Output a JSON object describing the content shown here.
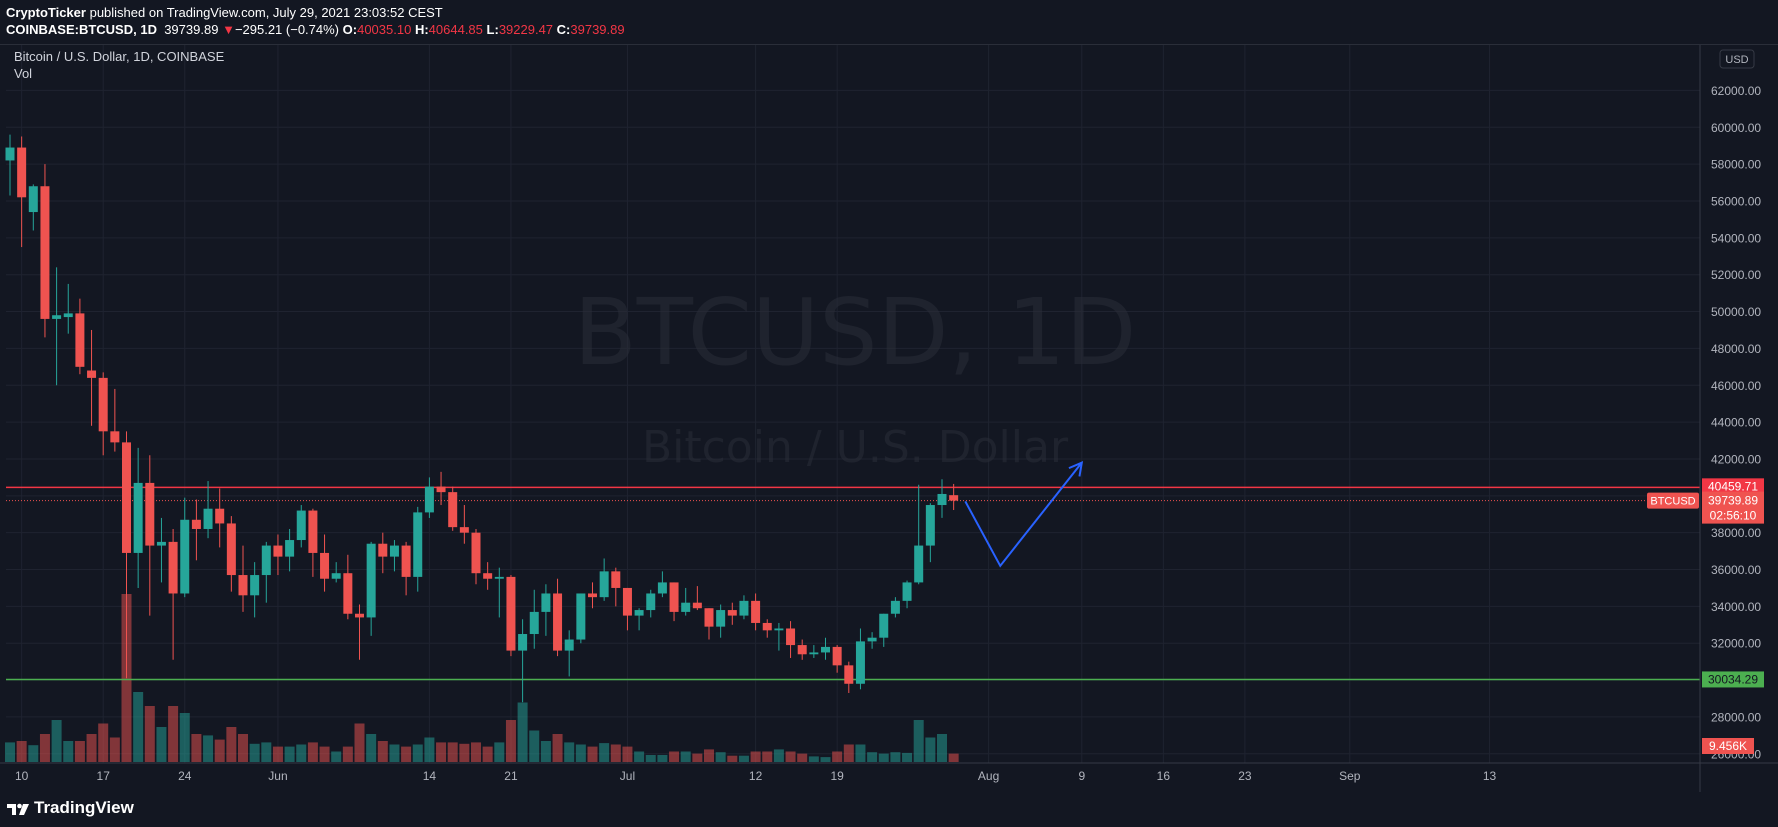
{
  "header": {
    "publisher": "CryptoTicker",
    "published_text": "published on TradingView.com, July 29, 2021 23:03:52 CEST",
    "symbol_line": "COINBASE:BTCUSD, 1D",
    "last": "39739.89",
    "change": "−295.21 (−0.74%)",
    "o_label": "O:",
    "open": "40035.10",
    "h_label": "H:",
    "high": "40644.85",
    "l_label": "L:",
    "low": "39229.47",
    "c_label": "C:",
    "close": "39739.89"
  },
  "chart_header": {
    "title": "Bitcoin / U.S. Dollar, 1D, COINBASE",
    "vol_label": "Vol"
  },
  "watermark": {
    "line1": "BTCUSD, 1D",
    "line2": "Bitcoin / U.S. Dollar"
  },
  "footer": {
    "brand": "TradingView"
  },
  "colors": {
    "up": "#26a69a",
    "down": "#ef5350",
    "bg": "#131722",
    "resistance": "#f23645",
    "support": "#4caf50",
    "projection": "#2962ff"
  },
  "chart_data": {
    "type": "candlestick",
    "currency_label": "USD",
    "y_range": [
      25500,
      63000
    ],
    "y_ticks": [
      "26000.00",
      "28000.00",
      "30000.00",
      "32000.00",
      "34000.00",
      "36000.00",
      "38000.00",
      "40000.00",
      "42000.00",
      "44000.00",
      "46000.00",
      "48000.00",
      "50000.00",
      "52000.00",
      "54000.00",
      "56000.00",
      "58000.00",
      "60000.00",
      "62000.00"
    ],
    "x_axis": [
      {
        "label": "10",
        "date": "2021-05-10"
      },
      {
        "label": "17",
        "date": "2021-05-17"
      },
      {
        "label": "24",
        "date": "2021-05-24"
      },
      {
        "label": "Jun",
        "date": "2021-06-01"
      },
      {
        "label": "14",
        "date": "2021-06-14"
      },
      {
        "label": "21",
        "date": "2021-06-21"
      },
      {
        "label": "Jul",
        "date": "2021-07-01"
      },
      {
        "label": "12",
        "date": "2021-07-12"
      },
      {
        "label": "19",
        "date": "2021-07-19"
      },
      {
        "label": "Aug",
        "date": "2021-08-01"
      },
      {
        "label": "9",
        "date": "2021-08-09"
      },
      {
        "label": "16",
        "date": "2021-08-16"
      },
      {
        "label": "23",
        "date": "2021-08-23"
      },
      {
        "label": "Sep",
        "date": "2021-09-01"
      },
      {
        "label": "13",
        "date": "2021-09-13"
      }
    ],
    "candles": [
      {
        "d": "2021-05-09",
        "o": 58200,
        "h": 59600,
        "l": 56300,
        "c": 58900,
        "v": 2.8
      },
      {
        "d": "2021-05-10",
        "o": 58900,
        "h": 59500,
        "l": 53500,
        "c": 56200,
        "v": 3.0
      },
      {
        "d": "2021-05-11",
        "o": 55400,
        "h": 56900,
        "l": 54400,
        "c": 56800,
        "v": 2.4
      },
      {
        "d": "2021-05-12",
        "o": 56800,
        "h": 58000,
        "l": 48600,
        "c": 49600,
        "v": 4.0
      },
      {
        "d": "2021-05-13",
        "o": 49600,
        "h": 52400,
        "l": 46000,
        "c": 49800,
        "v": 6.0
      },
      {
        "d": "2021-05-14",
        "o": 49700,
        "h": 51500,
        "l": 48800,
        "c": 49900,
        "v": 3.0
      },
      {
        "d": "2021-05-15",
        "o": 49900,
        "h": 50700,
        "l": 46600,
        "c": 47000,
        "v": 3.0
      },
      {
        "d": "2021-05-16",
        "o": 46800,
        "h": 49000,
        "l": 43800,
        "c": 46400,
        "v": 4.0
      },
      {
        "d": "2021-05-17",
        "o": 46400,
        "h": 46700,
        "l": 42200,
        "c": 43500,
        "v": 5.5
      },
      {
        "d": "2021-05-18",
        "o": 43500,
        "h": 45800,
        "l": 42400,
        "c": 42900,
        "v": 3.5
      },
      {
        "d": "2021-05-19",
        "o": 42900,
        "h": 43500,
        "l": 30100,
        "c": 36900,
        "v": 24.0
      },
      {
        "d": "2021-05-20",
        "o": 36900,
        "h": 42600,
        "l": 35000,
        "c": 40700,
        "v": 10.0
      },
      {
        "d": "2021-05-21",
        "o": 40700,
        "h": 42200,
        "l": 33500,
        "c": 37300,
        "v": 8.0
      },
      {
        "d": "2021-05-22",
        "o": 37300,
        "h": 38800,
        "l": 35300,
        "c": 37500,
        "v": 5.0
      },
      {
        "d": "2021-05-23",
        "o": 37500,
        "h": 38200,
        "l": 31100,
        "c": 34700,
        "v": 8.0
      },
      {
        "d": "2021-05-24",
        "o": 34700,
        "h": 39900,
        "l": 34500,
        "c": 38700,
        "v": 7.0
      },
      {
        "d": "2021-05-25",
        "o": 38700,
        "h": 39800,
        "l": 36500,
        "c": 38200,
        "v": 4.0
      },
      {
        "d": "2021-05-26",
        "o": 38200,
        "h": 40800,
        "l": 37700,
        "c": 39300,
        "v": 3.8
      },
      {
        "d": "2021-05-27",
        "o": 39300,
        "h": 40400,
        "l": 37200,
        "c": 38500,
        "v": 3.2
      },
      {
        "d": "2021-05-28",
        "o": 38500,
        "h": 38900,
        "l": 34800,
        "c": 35700,
        "v": 5.0
      },
      {
        "d": "2021-05-29",
        "o": 35700,
        "h": 37300,
        "l": 33700,
        "c": 34600,
        "v": 4.0
      },
      {
        "d": "2021-05-30",
        "o": 34600,
        "h": 36400,
        "l": 33400,
        "c": 35700,
        "v": 2.6
      },
      {
        "d": "2021-05-31",
        "o": 35700,
        "h": 37500,
        "l": 34200,
        "c": 37300,
        "v": 2.8
      },
      {
        "d": "2021-06-01",
        "o": 37300,
        "h": 37900,
        "l": 35700,
        "c": 36700,
        "v": 2.2
      },
      {
        "d": "2021-06-02",
        "o": 36700,
        "h": 38200,
        "l": 35900,
        "c": 37600,
        "v": 2.2
      },
      {
        "d": "2021-06-03",
        "o": 37600,
        "h": 39500,
        "l": 37200,
        "c": 39200,
        "v": 2.5
      },
      {
        "d": "2021-06-04",
        "o": 39200,
        "h": 39300,
        "l": 35600,
        "c": 36900,
        "v": 2.8
      },
      {
        "d": "2021-06-05",
        "o": 36900,
        "h": 37900,
        "l": 34800,
        "c": 35500,
        "v": 2.2
      },
      {
        "d": "2021-06-06",
        "o": 35500,
        "h": 36400,
        "l": 35300,
        "c": 35800,
        "v": 1.5
      },
      {
        "d": "2021-06-07",
        "o": 35800,
        "h": 36800,
        "l": 33300,
        "c": 33600,
        "v": 2.2
      },
      {
        "d": "2021-06-08",
        "o": 33600,
        "h": 34100,
        "l": 31100,
        "c": 33400,
        "v": 5.5
      },
      {
        "d": "2021-06-09",
        "o": 33400,
        "h": 37500,
        "l": 32400,
        "c": 37400,
        "v": 4.0
      },
      {
        "d": "2021-06-10",
        "o": 37400,
        "h": 38000,
        "l": 35800,
        "c": 36700,
        "v": 3.0
      },
      {
        "d": "2021-06-11",
        "o": 36700,
        "h": 37600,
        "l": 35900,
        "c": 37300,
        "v": 2.5
      },
      {
        "d": "2021-06-12",
        "o": 37300,
        "h": 37500,
        "l": 34600,
        "c": 35600,
        "v": 2.2
      },
      {
        "d": "2021-06-13",
        "o": 35600,
        "h": 39400,
        "l": 34800,
        "c": 39100,
        "v": 2.5
      },
      {
        "d": "2021-06-14",
        "o": 39100,
        "h": 41000,
        "l": 38800,
        "c": 40500,
        "v": 3.5
      },
      {
        "d": "2021-06-15",
        "o": 40500,
        "h": 41300,
        "l": 39500,
        "c": 40200,
        "v": 2.8
      },
      {
        "d": "2021-06-16",
        "o": 40200,
        "h": 40500,
        "l": 38100,
        "c": 38300,
        "v": 2.8
      },
      {
        "d": "2021-06-17",
        "o": 38300,
        "h": 39500,
        "l": 37400,
        "c": 38000,
        "v": 2.6
      },
      {
        "d": "2021-06-18",
        "o": 38000,
        "h": 38200,
        "l": 35200,
        "c": 35800,
        "v": 2.8
      },
      {
        "d": "2021-06-19",
        "o": 35800,
        "h": 36400,
        "l": 34900,
        "c": 35500,
        "v": 2.2
      },
      {
        "d": "2021-06-20",
        "o": 35500,
        "h": 36100,
        "l": 33400,
        "c": 35600,
        "v": 2.8
      },
      {
        "d": "2021-06-21",
        "o": 35600,
        "h": 35700,
        "l": 31300,
        "c": 31600,
        "v": 6.0
      },
      {
        "d": "2021-06-22",
        "o": 31600,
        "h": 33300,
        "l": 28800,
        "c": 32500,
        "v": 8.5
      },
      {
        "d": "2021-06-23",
        "o": 32500,
        "h": 34900,
        "l": 31700,
        "c": 33700,
        "v": 4.5
      },
      {
        "d": "2021-06-24",
        "o": 33700,
        "h": 35200,
        "l": 32400,
        "c": 34700,
        "v": 3.0
      },
      {
        "d": "2021-06-25",
        "o": 34700,
        "h": 35500,
        "l": 31300,
        "c": 31600,
        "v": 4.0
      },
      {
        "d": "2021-06-26",
        "o": 31600,
        "h": 32700,
        "l": 30200,
        "c": 32200,
        "v": 2.8
      },
      {
        "d": "2021-06-27",
        "o": 32200,
        "h": 34700,
        "l": 32000,
        "c": 34700,
        "v": 2.5
      },
      {
        "d": "2021-06-28",
        "o": 34700,
        "h": 35300,
        "l": 33900,
        "c": 34500,
        "v": 2.2
      },
      {
        "d": "2021-06-29",
        "o": 34500,
        "h": 36600,
        "l": 34300,
        "c": 35900,
        "v": 2.7
      },
      {
        "d": "2021-06-30",
        "o": 35900,
        "h": 36100,
        "l": 34000,
        "c": 35000,
        "v": 2.5
      },
      {
        "d": "2021-07-01",
        "o": 35000,
        "h": 35000,
        "l": 32700,
        "c": 33500,
        "v": 2.2
      },
      {
        "d": "2021-07-02",
        "o": 33500,
        "h": 33900,
        "l": 32700,
        "c": 33800,
        "v": 1.5
      },
      {
        "d": "2021-07-03",
        "o": 33800,
        "h": 34900,
        "l": 33400,
        "c": 34700,
        "v": 1.0
      },
      {
        "d": "2021-07-04",
        "o": 34700,
        "h": 35900,
        "l": 34500,
        "c": 35300,
        "v": 1.0
      },
      {
        "d": "2021-07-05",
        "o": 35300,
        "h": 35300,
        "l": 33200,
        "c": 33700,
        "v": 1.5
      },
      {
        "d": "2021-07-06",
        "o": 33700,
        "h": 35000,
        "l": 33500,
        "c": 34200,
        "v": 1.5
      },
      {
        "d": "2021-07-07",
        "o": 34200,
        "h": 35100,
        "l": 33800,
        "c": 33900,
        "v": 1.2
      },
      {
        "d": "2021-07-08",
        "o": 33900,
        "h": 33900,
        "l": 32200,
        "c": 32900,
        "v": 1.8
      },
      {
        "d": "2021-07-09",
        "o": 32900,
        "h": 34100,
        "l": 32300,
        "c": 33800,
        "v": 1.4
      },
      {
        "d": "2021-07-10",
        "o": 33800,
        "h": 34200,
        "l": 33000,
        "c": 33500,
        "v": 0.9
      },
      {
        "d": "2021-07-11",
        "o": 33500,
        "h": 34600,
        "l": 33300,
        "c": 34300,
        "v": 0.9
      },
      {
        "d": "2021-07-12",
        "o": 34300,
        "h": 34700,
        "l": 32700,
        "c": 33100,
        "v": 1.5
      },
      {
        "d": "2021-07-13",
        "o": 33100,
        "h": 33300,
        "l": 32300,
        "c": 32700,
        "v": 1.5
      },
      {
        "d": "2021-07-14",
        "o": 32700,
        "h": 33100,
        "l": 31600,
        "c": 32800,
        "v": 1.8
      },
      {
        "d": "2021-07-15",
        "o": 32800,
        "h": 33200,
        "l": 31200,
        "c": 31900,
        "v": 1.5
      },
      {
        "d": "2021-07-16",
        "o": 31900,
        "h": 32200,
        "l": 31100,
        "c": 31400,
        "v": 1.2
      },
      {
        "d": "2021-07-17",
        "o": 31400,
        "h": 31900,
        "l": 31200,
        "c": 31500,
        "v": 0.8
      },
      {
        "d": "2021-07-18",
        "o": 31500,
        "h": 32300,
        "l": 31100,
        "c": 31800,
        "v": 0.7
      },
      {
        "d": "2021-07-19",
        "o": 31800,
        "h": 31900,
        "l": 30400,
        "c": 30800,
        "v": 1.5
      },
      {
        "d": "2021-07-20",
        "o": 30800,
        "h": 31000,
        "l": 29300,
        "c": 29800,
        "v": 2.5
      },
      {
        "d": "2021-07-21",
        "o": 29800,
        "h": 32800,
        "l": 29500,
        "c": 32100,
        "v": 2.5
      },
      {
        "d": "2021-07-22",
        "o": 32100,
        "h": 32600,
        "l": 31700,
        "c": 32300,
        "v": 1.4
      },
      {
        "d": "2021-07-23",
        "o": 32300,
        "h": 33600,
        "l": 31800,
        "c": 33600,
        "v": 1.2
      },
      {
        "d": "2021-07-24",
        "o": 33600,
        "h": 34500,
        "l": 33400,
        "c": 34300,
        "v": 1.4
      },
      {
        "d": "2021-07-25",
        "o": 34300,
        "h": 35400,
        "l": 33900,
        "c": 35300,
        "v": 1.3
      },
      {
        "d": "2021-07-26",
        "o": 35300,
        "h": 40600,
        "l": 35200,
        "c": 37300,
        "v": 6.0
      },
      {
        "d": "2021-07-27",
        "o": 37300,
        "h": 39600,
        "l": 36400,
        "c": 39500,
        "v": 3.5
      },
      {
        "d": "2021-07-28",
        "o": 39500,
        "h": 40900,
        "l": 38800,
        "c": 40100,
        "v": 4.0
      },
      {
        "d": "2021-07-29",
        "o": 40035,
        "h": 40645,
        "l": 39229,
        "c": 39740,
        "v": 1.2
      }
    ],
    "horizontal_lines": [
      {
        "price": 40459.71,
        "label": "40459.71"
      },
      {
        "price": 30034.29,
        "label": "30034.29"
      }
    ],
    "last_price_label": "BTCUSD",
    "last_price": "39739.89",
    "countdown": "02:56:10",
    "volume_label": "9.456K",
    "projection": [
      {
        "date": "2021-07-30",
        "price": 39700
      },
      {
        "date": "2021-08-02",
        "price": 36200
      },
      {
        "date": "2021-08-09",
        "price": 41800
      }
    ]
  }
}
